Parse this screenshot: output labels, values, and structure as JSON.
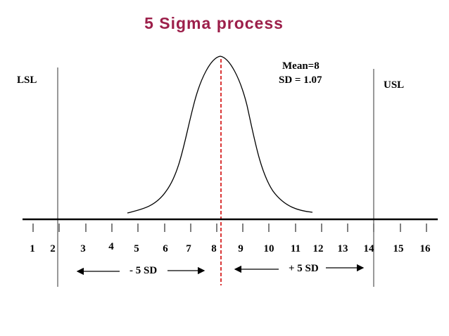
{
  "title": "5 Sigma process",
  "labels": {
    "lsl": "LSL",
    "usl": "USL",
    "mean": "Mean=8",
    "sd": "SD = 1.07",
    "minus_sd": "- 5 SD",
    "plus_sd": "+ 5 SD"
  },
  "axis": {
    "ticks": [
      "1",
      "2",
      "3",
      "4",
      "5",
      "6",
      "7",
      "8",
      "9",
      "10",
      "11",
      "12",
      "13",
      "14",
      "15",
      "16"
    ]
  },
  "colors": {
    "title": "#9c1f4a",
    "mean_line": "#d62020",
    "ink": "#000000"
  }
}
